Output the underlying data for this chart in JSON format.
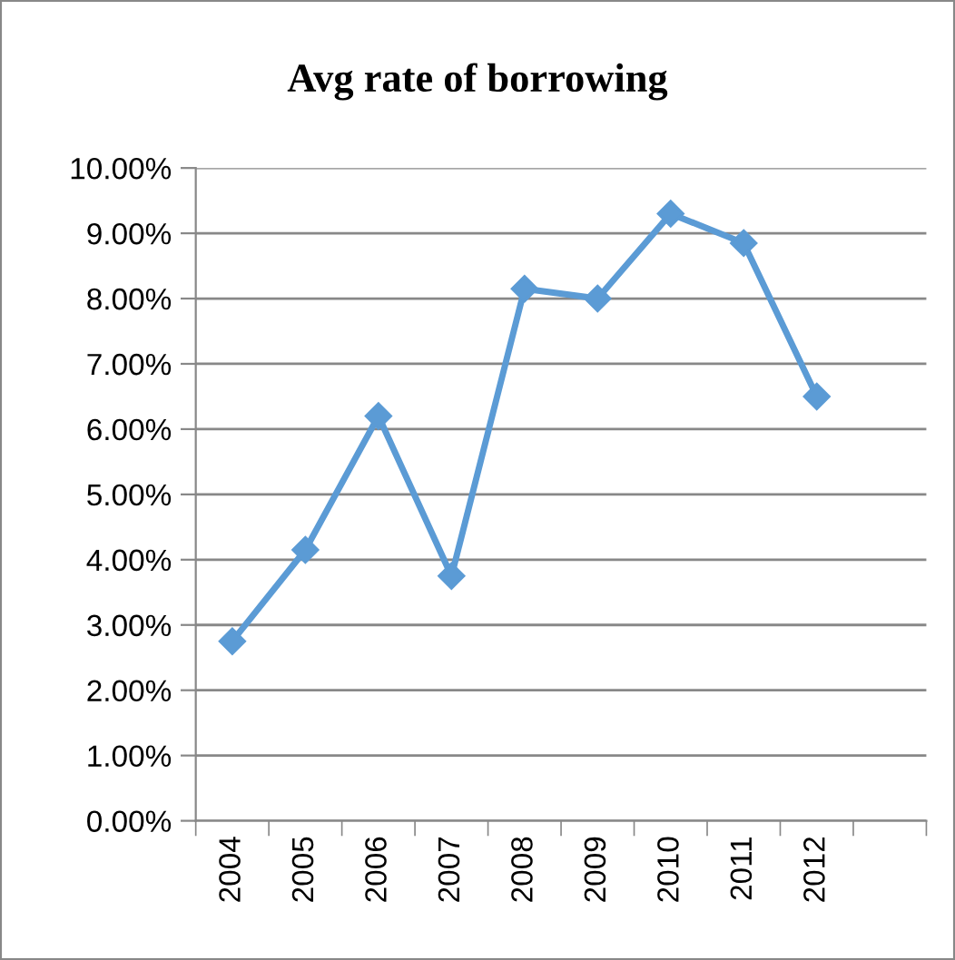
{
  "chart_data": {
    "type": "line",
    "title": "Avg rate of borrowing",
    "categories": [
      "2004",
      "2005",
      "2006",
      "2007",
      "2008",
      "2009",
      "2010",
      "2011",
      "2012",
      null
    ],
    "series": [
      {
        "color": "#5b9bd5",
        "values": [
          2.75,
          4.15,
          6.2,
          3.75,
          8.15,
          8.0,
          9.3,
          8.85,
          6.5,
          null
        ]
      }
    ],
    "ylim": [
      0,
      10
    ],
    "yticks": [
      {
        "value": 0,
        "label": "0.00%"
      },
      {
        "value": 1,
        "label": "1.00%"
      },
      {
        "value": 2,
        "label": "2.00%"
      },
      {
        "value": 3,
        "label": "3.00%"
      },
      {
        "value": 4,
        "label": "4.00%"
      },
      {
        "value": 5,
        "label": "5.00%"
      },
      {
        "value": 6,
        "label": "6.00%"
      },
      {
        "value": 7,
        "label": "7.00%"
      },
      {
        "value": 8,
        "label": "8.00%"
      },
      {
        "value": 9,
        "label": "9.00%"
      },
      {
        "value": 10,
        "label": "10.00%"
      }
    ],
    "grid": "y",
    "legend": false,
    "marker": "diamond",
    "line_style": "solid"
  }
}
